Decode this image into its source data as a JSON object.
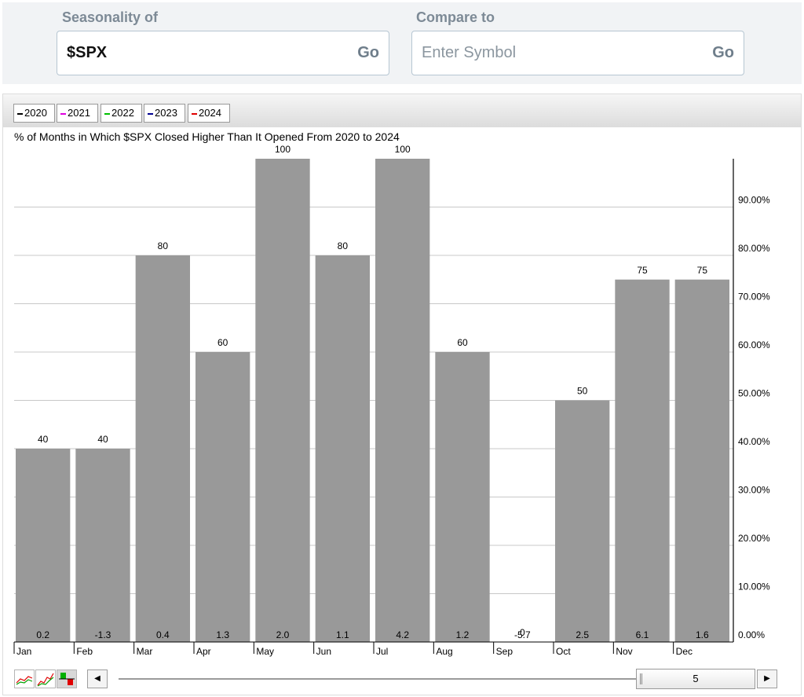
{
  "form": {
    "seasonality_label": "Seasonality of",
    "seasonality_value": "$SPX",
    "go_label": "Go",
    "compare_label": "Compare to",
    "compare_placeholder": "Enter Symbol",
    "compare_go_label": "Go"
  },
  "legend": [
    {
      "label": "2020",
      "color": "#000000"
    },
    {
      "label": "2021",
      "color": "#e000e0"
    },
    {
      "label": "2022",
      "color": "#00c000"
    },
    {
      "label": "2023",
      "color": "#000090"
    },
    {
      "label": "2024",
      "color": "#e00000"
    }
  ],
  "chart_data": {
    "type": "bar",
    "title": "% of Months in Which $SPX Closed Higher Than It Opened From 2020 to 2024",
    "categories": [
      "Jan",
      "Feb",
      "Mar",
      "Apr",
      "May",
      "Jun",
      "Jul",
      "Aug",
      "Sep",
      "Oct",
      "Nov",
      "Dec"
    ],
    "values": [
      40,
      40,
      80,
      60,
      100,
      80,
      100,
      60,
      0,
      50,
      75,
      75
    ],
    "value_labels": [
      "40",
      "40",
      "80",
      "60",
      "100",
      "80",
      "100",
      "60",
      "0",
      "50",
      "75",
      "75"
    ],
    "avg_returns": [
      "0.2",
      "-1.3",
      "0.4",
      "1.3",
      "2.0",
      "1.1",
      "4.2",
      "1.2",
      "-5.7",
      "2.5",
      "6.1",
      "1.6"
    ],
    "ylim": [
      0,
      100
    ],
    "yticks": [
      "0.00%",
      "10.00%",
      "20.00%",
      "30.00%",
      "40.00%",
      "50.00%",
      "60.00%",
      "70.00%",
      "80.00%",
      "90.00%"
    ],
    "grid": true,
    "bar_color": "#999999",
    "legend_position": "top-left"
  },
  "controls": {
    "slider_value": "5",
    "left_arrow": "◀",
    "right_arrow": "▶"
  }
}
